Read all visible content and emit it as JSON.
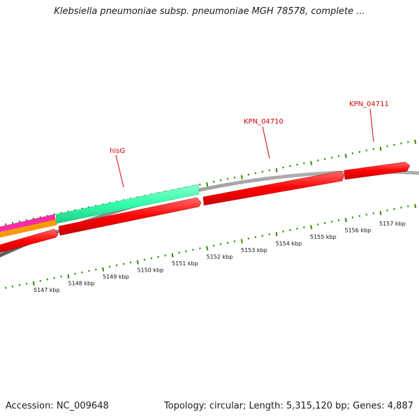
{
  "header": {
    "title": "Klebsiella pneumoniae subsp. pneumoniae MGH 78578, complete ..."
  },
  "footer": {
    "accession": "Accession: NC_009648",
    "summary": "Topology: circular; Length: 5,315,120 bp; Genes: 4,887"
  },
  "colors": {
    "backbone": "#8c8c8c",
    "gene": "#ff0000",
    "ncrna": "#33ffaa",
    "magenta_feature": "#ff2aa6",
    "orange_feature": "#ff9900",
    "tick": "#2e8b00",
    "label": "#d00000"
  },
  "scale": {
    "ticks": [
      {
        "label": "5147 kbp",
        "pos_kbp": 5147
      },
      {
        "label": "5148 kbp",
        "pos_kbp": 5148
      },
      {
        "label": "5149 kbp",
        "pos_kbp": 5149
      },
      {
        "label": "5150 kbp",
        "pos_kbp": 5150
      },
      {
        "label": "5151 kbp",
        "pos_kbp": 5151
      },
      {
        "label": "5152 kbp",
        "pos_kbp": 5152
      },
      {
        "label": "5153 kbp",
        "pos_kbp": 5153
      },
      {
        "label": "5154 kbp",
        "pos_kbp": 5154
      },
      {
        "label": "5155 kbp",
        "pos_kbp": 5155
      },
      {
        "label": "5156 kbp",
        "pos_kbp": 5156
      },
      {
        "label": "5157 kbp",
        "pos_kbp": 5157
      }
    ]
  },
  "gene_labels": [
    {
      "name": "hisG"
    },
    {
      "name": "KPN_04710"
    },
    {
      "name": "KPN_04711"
    }
  ]
}
